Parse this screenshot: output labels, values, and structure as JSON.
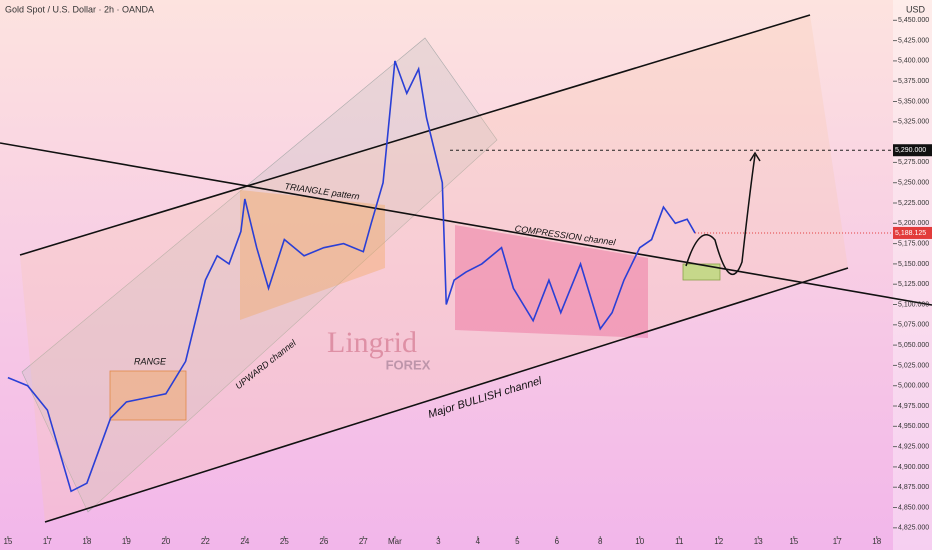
{
  "chart_data": {
    "type": "line",
    "title": "Gold Spot / U.S. Dollar · 2h · OANDA",
    "y_unit": "USD",
    "color": "#2a3fd6",
    "x": [
      0,
      0.5,
      1,
      1.3,
      1.6,
      2,
      2.3,
      2.6,
      3,
      3.5,
      4,
      4.5,
      4.8,
      5,
      5.3,
      5.6,
      5.9,
      6,
      6.3,
      6.6,
      7,
      7.5,
      8,
      8.5,
      9,
      9.2,
      9.5,
      9.8,
      10.1,
      10.4,
      10.6,
      10.8,
      11,
      11.1,
      11.3,
      11.6,
      12,
      12.5,
      12.8,
      13.3,
      13.7,
      14,
      14.5,
      15,
      15.3,
      15.6,
      16,
      16.3,
      16.6,
      16.9,
      17.2,
      17.4
    ],
    "values": [
      5010,
      5000,
      4970,
      4920,
      4870,
      4880,
      4920,
      4960,
      4980,
      4985,
      4990,
      5030,
      5090,
      5130,
      5160,
      5150,
      5190,
      5230,
      5170,
      5120,
      5180,
      5160,
      5170,
      5175,
      5165,
      5200,
      5250,
      5400,
      5360,
      5390,
      5330,
      5290,
      5250,
      5100,
      5130,
      5140,
      5150,
      5170,
      5120,
      5080,
      5130,
      5090,
      5150,
      5070,
      5090,
      5130,
      5170,
      5180,
      5220,
      5200,
      5205,
      5188
    ],
    "xlim": [
      -0.2,
      23.4
    ],
    "xticks": [
      {
        "value": 0,
        "label": "15"
      },
      {
        "value": 1,
        "label": "17"
      },
      {
        "value": 2,
        "label": "18"
      },
      {
        "value": 3,
        "label": "19"
      },
      {
        "value": 4,
        "label": "20"
      },
      {
        "value": 5,
        "label": "22"
      },
      {
        "value": 6,
        "label": "24"
      },
      {
        "value": 7,
        "label": "25"
      },
      {
        "value": 8,
        "label": "26"
      },
      {
        "value": 9,
        "label": "27"
      },
      {
        "value": 9.8,
        "label": "Mar"
      },
      {
        "value": 10.9,
        "label": "3"
      },
      {
        "value": 11.9,
        "label": "4"
      },
      {
        "value": 12.9,
        "label": "5"
      },
      {
        "value": 13.9,
        "label": "6"
      },
      {
        "value": 15,
        "label": "8"
      },
      {
        "value": 16,
        "label": "10"
      },
      {
        "value": 17,
        "label": "11"
      },
      {
        "value": 18,
        "label": "12"
      },
      {
        "value": 19,
        "label": "13"
      },
      {
        "value": 19.9,
        "label": "15"
      },
      {
        "value": 21,
        "label": "17"
      },
      {
        "value": 22,
        "label": "18"
      }
    ],
    "ylim": [
      4810,
      5475
    ],
    "yticks": [
      {
        "value": 4825,
        "label": "4,825.000"
      },
      {
        "value": 4850,
        "label": "4,850.000"
      },
      {
        "value": 4875,
        "label": "4,875.000"
      },
      {
        "value": 4900,
        "label": "4,900.000"
      },
      {
        "value": 4925,
        "label": "4,925.000"
      },
      {
        "value": 4950,
        "label": "4,950.000"
      },
      {
        "value": 4975,
        "label": "4,975.000"
      },
      {
        "value": 5000,
        "label": "5,000.000"
      },
      {
        "value": 5025,
        "label": "5,025.000"
      },
      {
        "value": 5050,
        "label": "5,050.000"
      },
      {
        "value": 5075,
        "label": "5,075.000"
      },
      {
        "value": 5100,
        "label": "5,100.000"
      },
      {
        "value": 5125,
        "label": "5,125.000"
      },
      {
        "value": 5150,
        "label": "5,150.000"
      },
      {
        "value": 5175,
        "label": "5,175.000"
      },
      {
        "value": 5200,
        "label": "5,200.000"
      },
      {
        "value": 5225,
        "label": "5,225.000"
      },
      {
        "value": 5250,
        "label": "5,250.000"
      },
      {
        "value": 5275,
        "label": "5,275.000"
      },
      {
        "value": 5325,
        "label": "5,325.000"
      },
      {
        "value": 5350,
        "label": "5,350.000"
      },
      {
        "value": 5375,
        "label": "5,375.000"
      },
      {
        "value": 5400,
        "label": "5,400.000"
      },
      {
        "value": 5425,
        "label": "5,425.000"
      },
      {
        "value": 5450,
        "label": "5,450.000"
      }
    ],
    "target_price": {
      "value": 5290,
      "label": "5,290.000"
    },
    "current_price": {
      "value": 5188.125,
      "label": "5,188.125"
    },
    "annotations": [
      "RANGE",
      "TRIANGLE pattern",
      "UPWARD channel",
      "COMPRESSION channel",
      "Major BULLISH channel",
      "Lingrid",
      "FOREX"
    ]
  }
}
